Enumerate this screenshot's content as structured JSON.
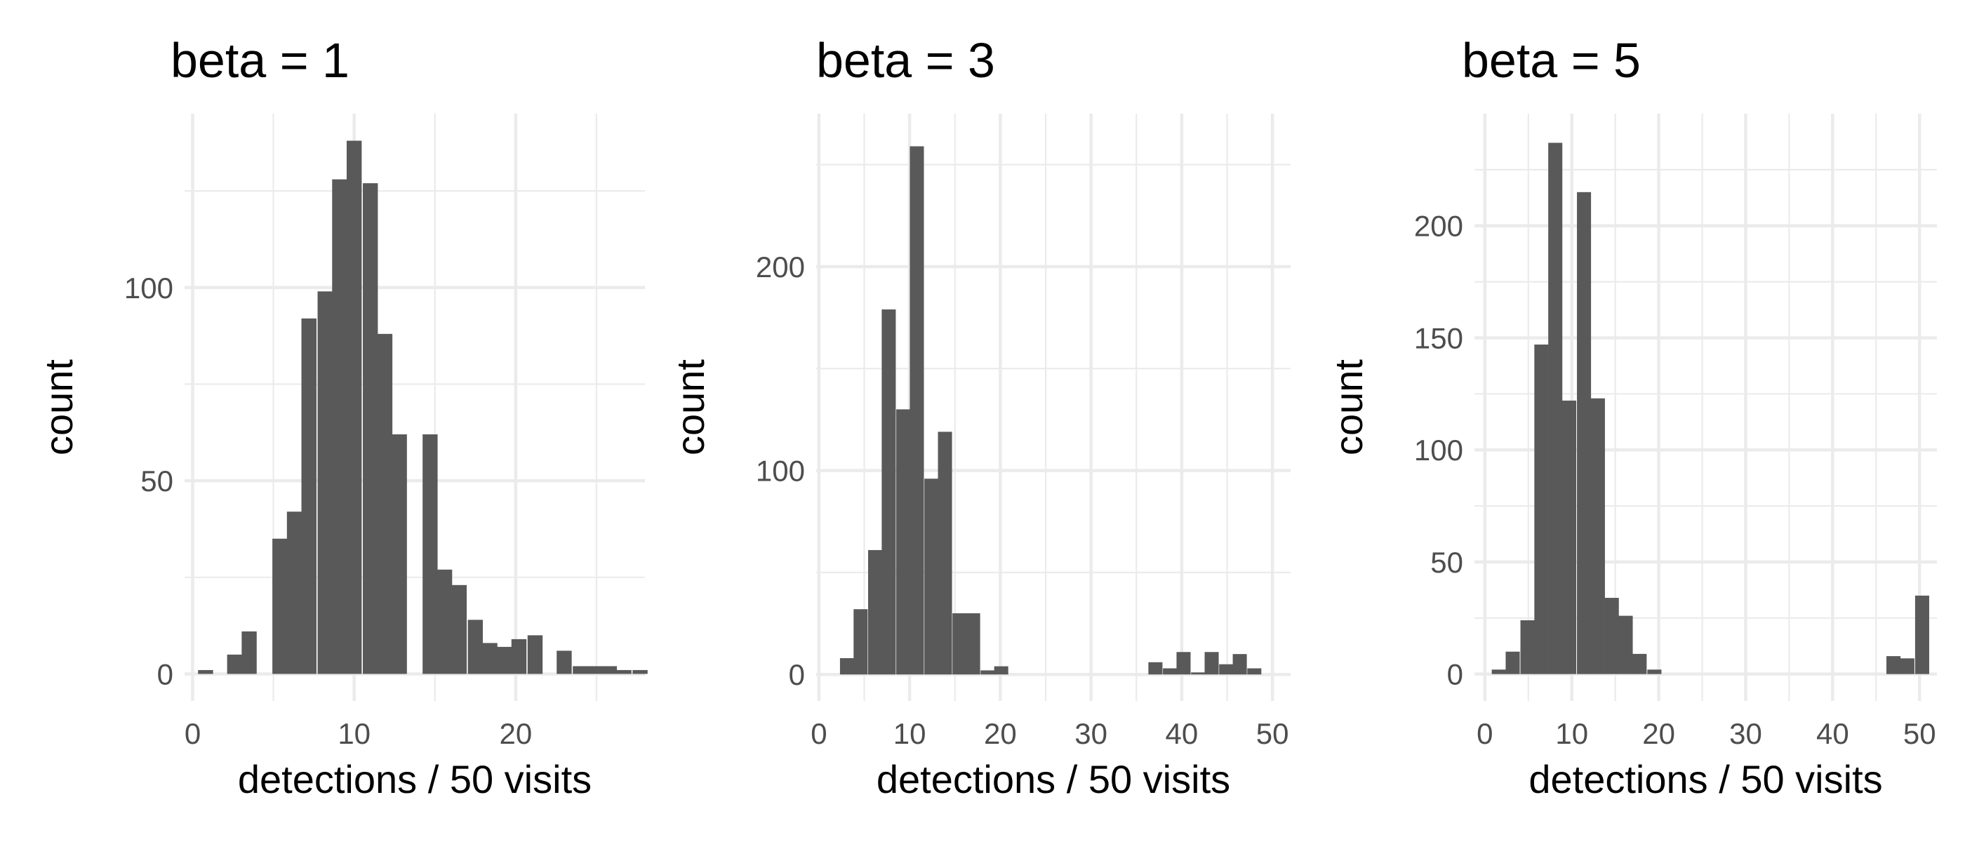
{
  "chart_data": [
    {
      "type": "bar",
      "title": "beta = 1",
      "xlabel": "detections / 50 visits",
      "ylabel": "count",
      "xlim": [
        -0.5,
        28
      ],
      "ylim": [
        -7,
        145
      ],
      "x_ticks": [
        0,
        10,
        20
      ],
      "y_ticks": [
        0,
        50,
        100
      ],
      "bin_width": 0.93,
      "bins": [
        {
          "x": 0.8,
          "count": 1
        },
        {
          "x": 2.6,
          "count": 5
        },
        {
          "x": 3.5,
          "count": 11
        },
        {
          "x": 5.4,
          "count": 35
        },
        {
          "x": 6.3,
          "count": 42
        },
        {
          "x": 7.2,
          "count": 92
        },
        {
          "x": 8.2,
          "count": 99
        },
        {
          "x": 9.1,
          "count": 128
        },
        {
          "x": 10.0,
          "count": 138
        },
        {
          "x": 11.0,
          "count": 127
        },
        {
          "x": 11.9,
          "count": 88
        },
        {
          "x": 12.8,
          "count": 62
        },
        {
          "x": 14.7,
          "count": 62
        },
        {
          "x": 15.6,
          "count": 27
        },
        {
          "x": 16.5,
          "count": 23
        },
        {
          "x": 17.5,
          "count": 14
        },
        {
          "x": 18.4,
          "count": 8
        },
        {
          "x": 19.3,
          "count": 7
        },
        {
          "x": 20.2,
          "count": 9
        },
        {
          "x": 21.2,
          "count": 10
        },
        {
          "x": 23.0,
          "count": 6
        },
        {
          "x": 24.0,
          "count": 2
        },
        {
          "x": 24.9,
          "count": 2
        },
        {
          "x": 25.8,
          "count": 2
        },
        {
          "x": 26.7,
          "count": 1
        },
        {
          "x": 27.7,
          "count": 1
        }
      ],
      "grid": true
    },
    {
      "type": "bar",
      "title": "beta = 3",
      "xlabel": "detections / 50 visits",
      "ylabel": "count",
      "xlim": [
        -0.3,
        52
      ],
      "ylim": [
        -13,
        275
      ],
      "x_ticks": [
        0,
        10,
        20,
        30,
        40,
        50
      ],
      "y_ticks": [
        0,
        100,
        200
      ],
      "bin_width": 1.55,
      "bins": [
        {
          "x": 3.1,
          "count": 8
        },
        {
          "x": 4.6,
          "count": 32
        },
        {
          "x": 6.2,
          "count": 61
        },
        {
          "x": 7.7,
          "count": 179
        },
        {
          "x": 9.3,
          "count": 130
        },
        {
          "x": 10.8,
          "count": 259
        },
        {
          "x": 12.4,
          "count": 96
        },
        {
          "x": 13.9,
          "count": 119
        },
        {
          "x": 15.5,
          "count": 30
        },
        {
          "x": 17.0,
          "count": 30
        },
        {
          "x": 18.6,
          "count": 2
        },
        {
          "x": 20.1,
          "count": 4
        },
        {
          "x": 37.1,
          "count": 6
        },
        {
          "x": 38.7,
          "count": 3
        },
        {
          "x": 40.2,
          "count": 11
        },
        {
          "x": 41.8,
          "count": 1
        },
        {
          "x": 43.3,
          "count": 11
        },
        {
          "x": 44.9,
          "count": 5
        },
        {
          "x": 46.4,
          "count": 10
        },
        {
          "x": 48.0,
          "count": 3
        }
      ],
      "grid": true
    },
    {
      "type": "bar",
      "title": "beta = 5",
      "xlabel": "detections / 50 visits",
      "ylabel": "count",
      "xlim": [
        -1.2,
        52
      ],
      "ylim": [
        -12,
        250
      ],
      "x_ticks": [
        0,
        10,
        20,
        30,
        40,
        50
      ],
      "y_ticks": [
        0,
        50,
        100,
        150,
        200
      ],
      "bin_width": 1.62,
      "bins": [
        {
          "x": 1.6,
          "count": 2
        },
        {
          "x": 3.2,
          "count": 10
        },
        {
          "x": 4.9,
          "count": 24
        },
        {
          "x": 6.5,
          "count": 147
        },
        {
          "x": 8.1,
          "count": 237
        },
        {
          "x": 9.7,
          "count": 122
        },
        {
          "x": 11.4,
          "count": 215
        },
        {
          "x": 13.0,
          "count": 123
        },
        {
          "x": 14.6,
          "count": 34
        },
        {
          "x": 16.2,
          "count": 26
        },
        {
          "x": 17.8,
          "count": 9
        },
        {
          "x": 19.5,
          "count": 2
        },
        {
          "x": 47.0,
          "count": 8
        },
        {
          "x": 48.6,
          "count": 7
        },
        {
          "x": 50.3,
          "count": 35
        }
      ],
      "grid": true
    }
  ]
}
